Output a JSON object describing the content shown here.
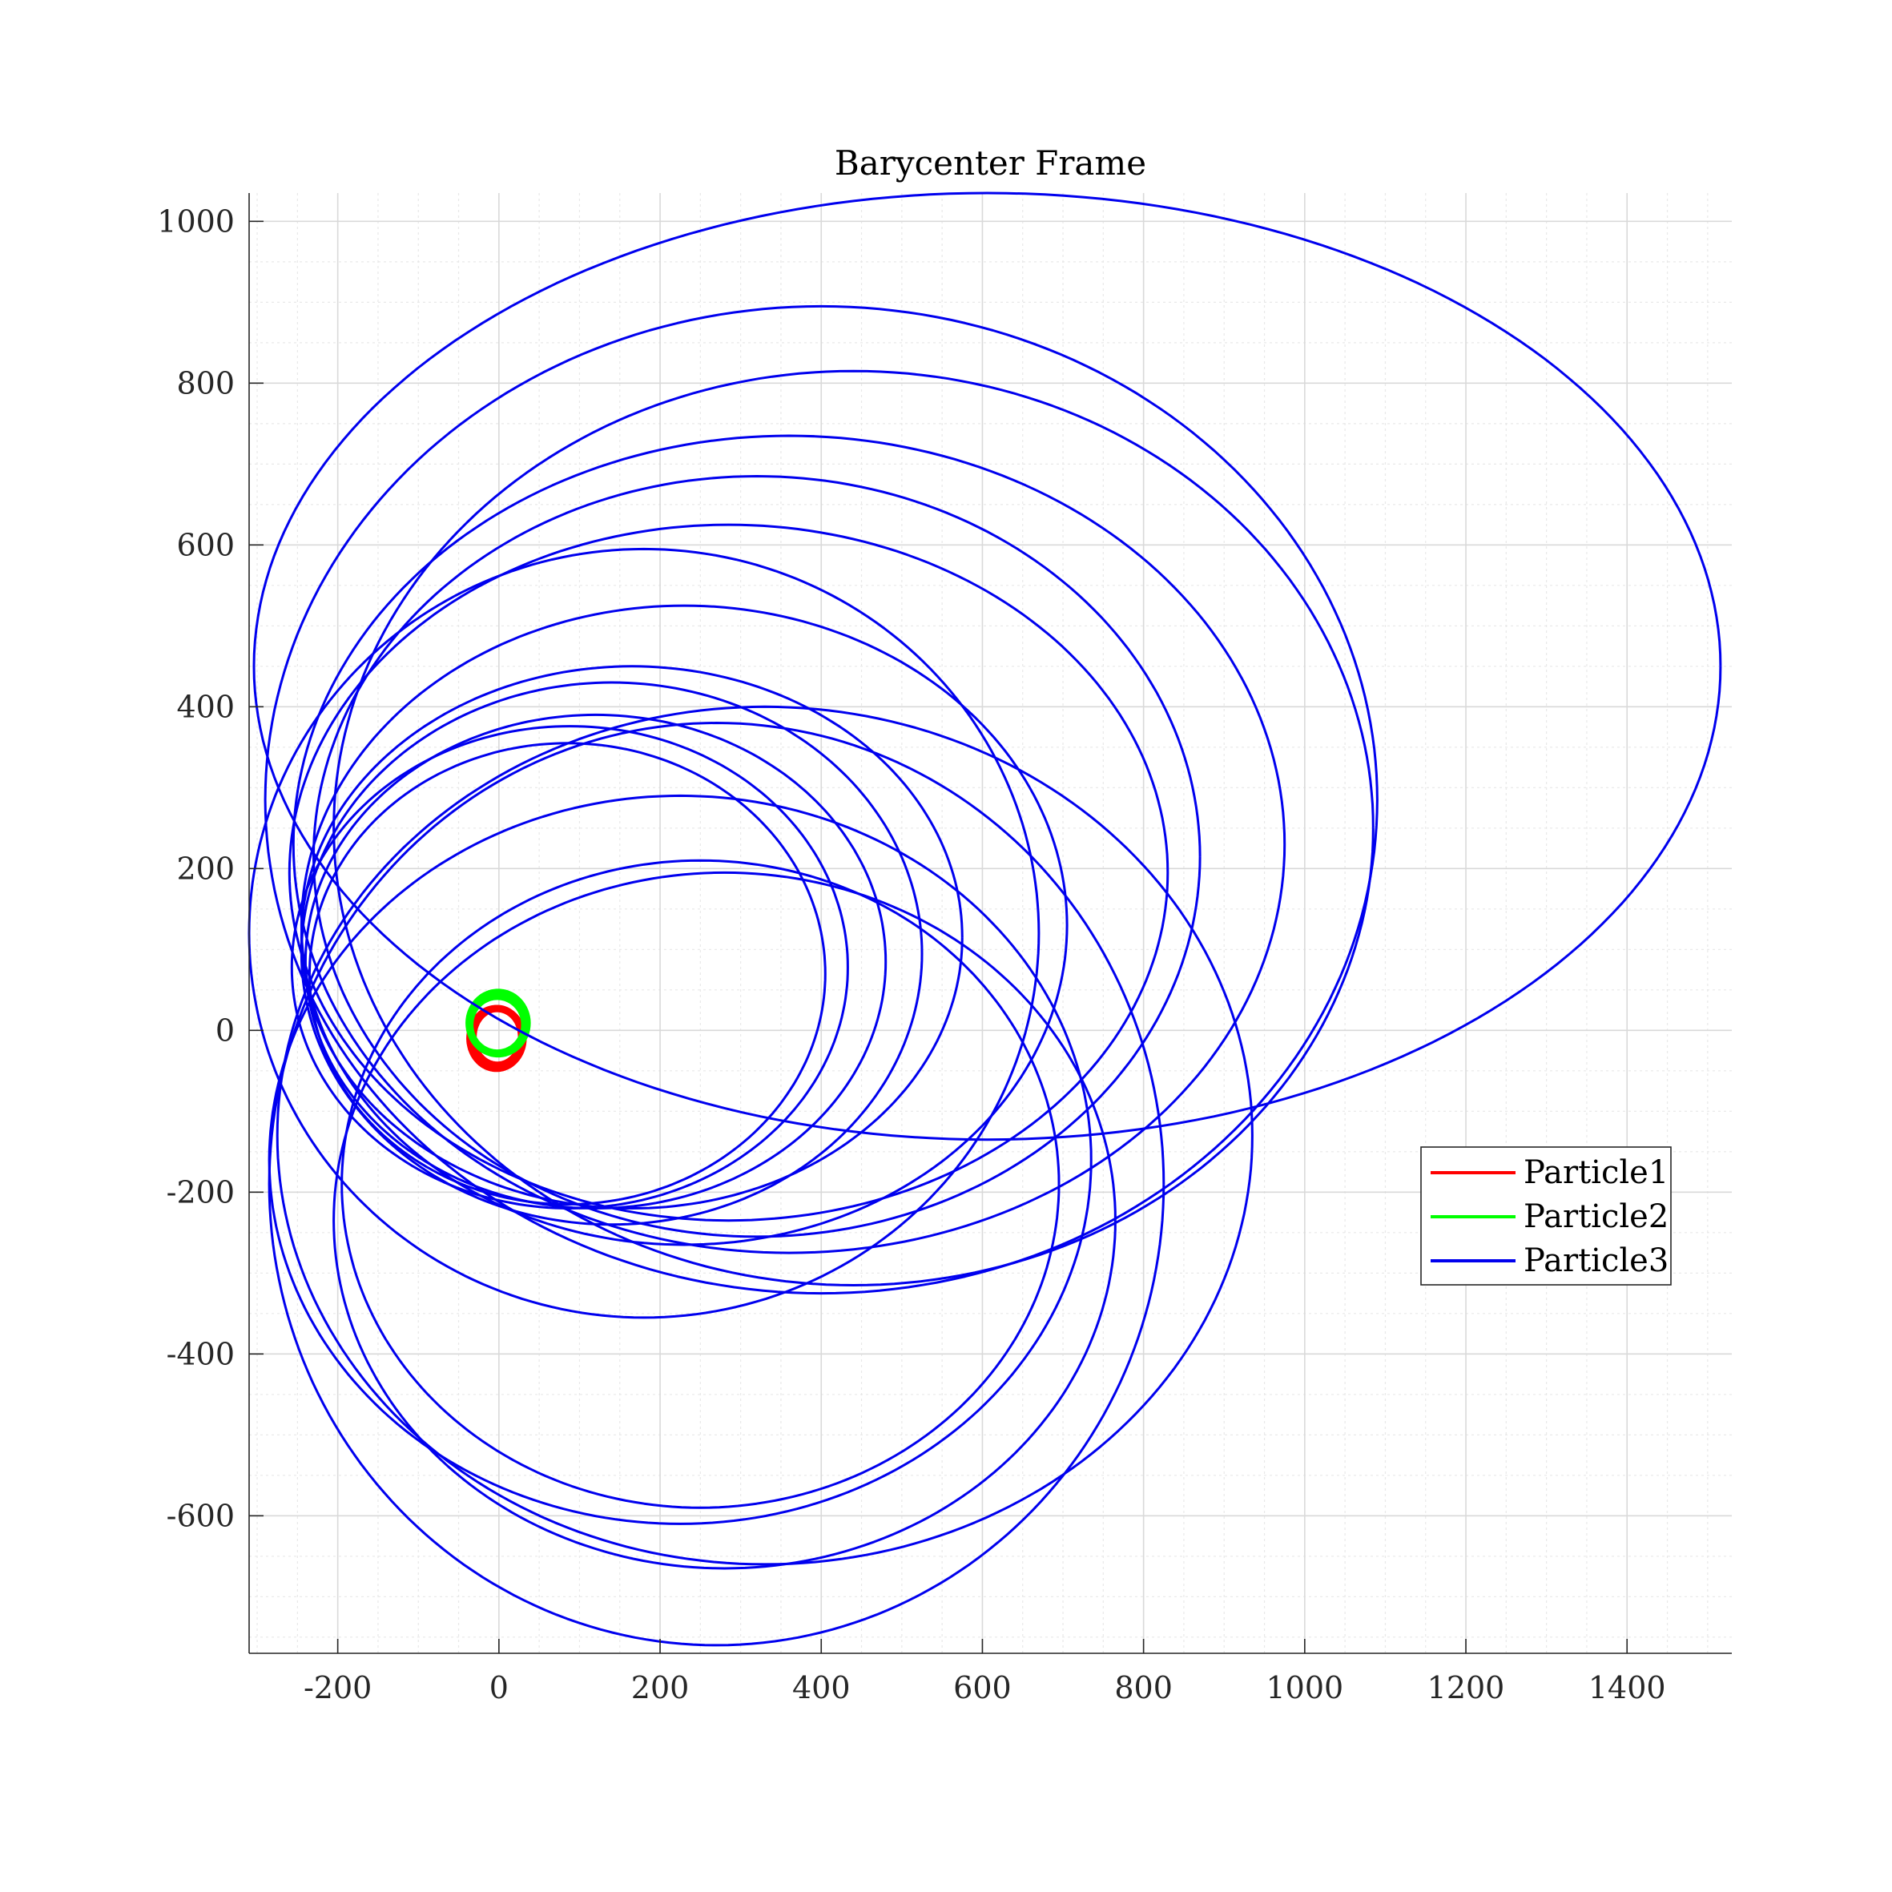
{
  "chart_data": {
    "type": "line",
    "title": "Barycenter Frame",
    "xlabel": "",
    "ylabel": "",
    "xlim": [
      -310,
      1530
    ],
    "ylim": [
      -770,
      1035
    ],
    "xticks": [
      -200,
      0,
      200,
      400,
      600,
      800,
      1000,
      1200,
      1400
    ],
    "yticks": [
      -600,
      -400,
      -200,
      0,
      200,
      400,
      600,
      800,
      1000
    ],
    "grid": true,
    "minor_grid": true,
    "legend_position": "right",
    "series": [
      {
        "name": "Particle1",
        "color": "#ff0000",
        "orbits": [
          {
            "cx": -2,
            "cy": -8,
            "rx": 30,
            "ry": 35,
            "a0": 0,
            "a1": 360
          },
          {
            "cx": -3,
            "cy": -10,
            "rx": 33,
            "ry": 37,
            "a0": 0,
            "a1": 360
          }
        ]
      },
      {
        "name": "Particle2",
        "color": "#00ff00",
        "orbits": [
          {
            "cx": -2,
            "cy": 7,
            "rx": 34,
            "ry": 35,
            "a0": 0,
            "a1": 360
          },
          {
            "cx": -1,
            "cy": 9,
            "rx": 36,
            "ry": 38,
            "a0": 0,
            "a1": 360
          }
        ]
      },
      {
        "name": "Particle3",
        "color": "#0000ee",
        "orbits": [
          {
            "cx": 606,
            "cy": 450,
            "rx": 910,
            "ry": 585,
            "a0": 0,
            "a1": 360
          },
          {
            "cx": 440,
            "cy": 250,
            "rx": 645,
            "ry": 565,
            "a0": 0,
            "a1": 360
          },
          {
            "cx": 400,
            "cy": 285,
            "rx": 690,
            "ry": 610,
            "a0": 0,
            "a1": 360
          },
          {
            "cx": 360,
            "cy": 230,
            "rx": 615,
            "ry": 505,
            "a0": 0,
            "a1": 360
          },
          {
            "cx": 320,
            "cy": 215,
            "rx": 550,
            "ry": 470,
            "a0": 0,
            "a1": 360
          },
          {
            "cx": 285,
            "cy": 195,
            "rx": 545,
            "ry": 430,
            "a0": 0,
            "a1": 360
          },
          {
            "cx": 230,
            "cy": 130,
            "rx": 475,
            "ry": 395,
            "a0": 0,
            "a1": 360
          },
          {
            "cx": 180,
            "cy": 120,
            "rx": 490,
            "ry": 475,
            "a0": 0,
            "a1": 360
          },
          {
            "cx": 165,
            "cy": 115,
            "rx": 410,
            "ry": 335,
            "a0": 0,
            "a1": 360
          },
          {
            "cx": 140,
            "cy": 95,
            "rx": 385,
            "ry": 335,
            "a0": 0,
            "a1": 360
          },
          {
            "cx": 120,
            "cy": 85,
            "rx": 360,
            "ry": 305,
            "a0": 0,
            "a1": 360
          },
          {
            "cx": 88,
            "cy": 78,
            "rx": 345,
            "ry": 298,
            "a0": 0,
            "a1": 360
          },
          {
            "cx": 85,
            "cy": 70,
            "rx": 320,
            "ry": 285,
            "a0": 0,
            "a1": 360
          },
          {
            "cx": 330,
            "cy": -130,
            "rx": 605,
            "ry": 530,
            "a0": 0,
            "a1": 360
          },
          {
            "cx": 270,
            "cy": -190,
            "rx": 555,
            "ry": 570,
            "a0": 0,
            "a1": 360
          },
          {
            "cx": 280,
            "cy": -235,
            "rx": 485,
            "ry": 430,
            "a0": 0,
            "a1": 360
          },
          {
            "cx": 250,
            "cy": -190,
            "rx": 445,
            "ry": 400,
            "a0": 0,
            "a1": 360
          },
          {
            "cx": 225,
            "cy": -160,
            "rx": 510,
            "ry": 450,
            "a0": 0,
            "a1": 360
          }
        ]
      }
    ]
  }
}
